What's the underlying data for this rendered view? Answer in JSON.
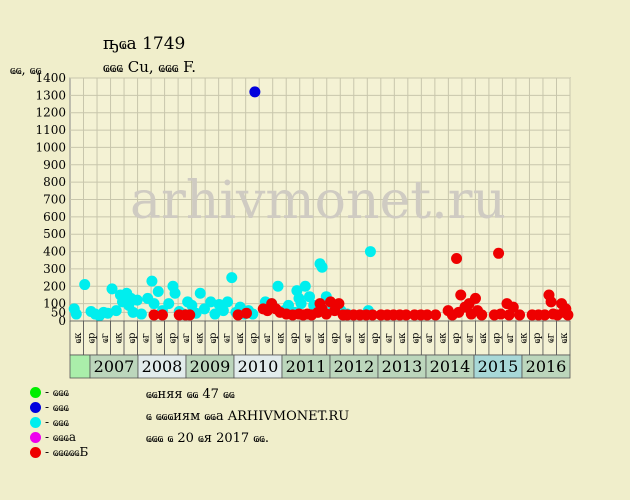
{
  "header": {
    "title": "ҧҩа 1749",
    "subtitle": "ҩҩҩ Cu, ҩҩҩ F.",
    "y_unit": "ҩҩ, ҩҩ"
  },
  "watermark": "arhivmonet.ru",
  "colors": {
    "background": "#f0eecb",
    "plot_bg": "#f4f2d4",
    "grid": "#c8c6ac",
    "green": "#00ee00",
    "blue": "#0000dd",
    "cyan": "#00eeee",
    "magenta": "#ee00ee",
    "red": "#ee0000"
  },
  "legend": [
    {
      "label": "- ҩҩҩ",
      "color": "#00ee00"
    },
    {
      "label": "- ҩҩҩ",
      "color": "#0000dd"
    },
    {
      "label": "- ҩҩҩ",
      "color": "#00eeee"
    },
    {
      "label": "- ҩҩҩа",
      "color": "#ee00ee"
    },
    {
      "label": "- ҩҩҩҩҩБ",
      "color": "#ee0000"
    }
  ],
  "info": {
    "line1": "ҩҩняя ҩҩ 47 ҩҩ",
    "line2": "ҩ ҩҩҩиям ҩҩа ARHIVMONET.RU",
    "line3": "ҩҩҩ ҩ 20 ҩя 2017 ҩҩ."
  },
  "chart_data": {
    "type": "scatter",
    "ylim": [
      0,
      1400
    ],
    "yticks": [
      0,
      50,
      100,
      200,
      300,
      400,
      500,
      600,
      700,
      800,
      900,
      1000,
      1100,
      1200,
      1300,
      1400
    ],
    "x_periods": [
      "ҩк",
      "ҩр",
      "ҩг",
      "ҩк",
      "ҩр",
      "ҩг",
      "ҩк",
      "ҩр",
      "ҩг",
      "ҩк",
      "ҩр",
      "ҩг",
      "ҩк",
      "ҩр",
      "ҩг",
      "ҩк",
      "ҩр",
      "ҩг",
      "ҩк",
      "ҩр",
      "ҩг",
      "ҩк",
      "ҩр",
      "ҩг",
      "ҩк",
      "ҩр",
      "ҩг",
      "ҩк",
      "ҩр",
      "ҩг",
      "ҩк",
      "ҩр",
      "ҩг",
      "ҩк",
      "ҩр",
      "ҩг",
      "ҩк"
    ],
    "years": [
      "2007",
      "2008",
      "2009",
      "2010",
      "2011",
      "2012",
      "2013",
      "2014",
      "2015",
      "2016"
    ],
    "series": [
      {
        "color": "#0000dd",
        "points": [
          [
            2010.5,
            1320
          ]
        ]
      },
      {
        "color": "#00eeee",
        "points": [
          [
            2006.2,
            70
          ],
          [
            2006.25,
            40
          ],
          [
            2006.45,
            210
          ],
          [
            2006.6,
            55
          ],
          [
            2006.7,
            40
          ],
          [
            2006.8,
            30
          ],
          [
            2006.9,
            50
          ],
          [
            2007.0,
            45
          ],
          [
            2007.1,
            185
          ],
          [
            2007.2,
            60
          ],
          [
            2007.3,
            150
          ],
          [
            2007.35,
            110
          ],
          [
            2007.45,
            160
          ],
          [
            2007.5,
            90
          ],
          [
            2007.55,
            130
          ],
          [
            2007.6,
            50
          ],
          [
            2007.7,
            120
          ],
          [
            2007.8,
            40
          ],
          [
            2007.95,
            130
          ],
          [
            2008.05,
            230
          ],
          [
            2008.1,
            100
          ],
          [
            2008.2,
            170
          ],
          [
            2008.3,
            60
          ],
          [
            2008.45,
            100
          ],
          [
            2008.55,
            200
          ],
          [
            2008.6,
            160
          ],
          [
            2008.7,
            55
          ],
          [
            2008.8,
            40
          ],
          [
            2008.9,
            110
          ],
          [
            2009.0,
            90
          ],
          [
            2009.1,
            45
          ],
          [
            2009.2,
            160
          ],
          [
            2009.3,
            70
          ],
          [
            2009.45,
            110
          ],
          [
            2009.55,
            40
          ],
          [
            2009.65,
            95
          ],
          [
            2009.75,
            60
          ],
          [
            2009.85,
            110
          ],
          [
            2009.95,
            250
          ],
          [
            2010.05,
            50
          ],
          [
            2010.15,
            80
          ],
          [
            2010.25,
            40
          ],
          [
            2010.35,
            60
          ],
          [
            2010.45,
            40
          ],
          [
            2010.75,
            110
          ],
          [
            2010.9,
            100
          ],
          [
            2011.05,
            200
          ],
          [
            2011.2,
            60
          ],
          [
            2011.3,
            90
          ],
          [
            2011.45,
            50
          ],
          [
            2011.5,
            175
          ],
          [
            2011.55,
            130
          ],
          [
            2011.6,
            100
          ],
          [
            2011.7,
            200
          ],
          [
            2011.8,
            140
          ],
          [
            2011.9,
            90
          ],
          [
            2012.05,
            330
          ],
          [
            2012.1,
            310
          ],
          [
            2012.2,
            140
          ],
          [
            2012.35,
            90
          ],
          [
            2012.55,
            60
          ],
          [
            2012.7,
            40
          ],
          [
            2013.2,
            60
          ],
          [
            2013.25,
            400
          ]
        ]
      },
      {
        "color": "#ee0000",
        "points": [
          [
            2008.1,
            35
          ],
          [
            2008.3,
            35
          ],
          [
            2008.7,
            35
          ],
          [
            2008.85,
            35
          ],
          [
            2008.95,
            35
          ],
          [
            2010.1,
            35
          ],
          [
            2010.3,
            45
          ],
          [
            2010.7,
            70
          ],
          [
            2010.8,
            60
          ],
          [
            2010.9,
            100
          ],
          [
            2011.0,
            70
          ],
          [
            2011.1,
            50
          ],
          [
            2011.25,
            40
          ],
          [
            2011.4,
            35
          ],
          [
            2011.55,
            40
          ],
          [
            2011.65,
            35
          ],
          [
            2011.75,
            40
          ],
          [
            2011.85,
            35
          ],
          [
            2012.0,
            50
          ],
          [
            2012.05,
            100
          ],
          [
            2012.1,
            70
          ],
          [
            2012.2,
            40
          ],
          [
            2012.3,
            110
          ],
          [
            2012.4,
            60
          ],
          [
            2012.5,
            100
          ],
          [
            2012.6,
            35
          ],
          [
            2012.7,
            35
          ],
          [
            2012.85,
            35
          ],
          [
            2013.0,
            35
          ],
          [
            2013.15,
            35
          ],
          [
            2013.3,
            35
          ],
          [
            2013.5,
            35
          ],
          [
            2013.65,
            35
          ],
          [
            2013.8,
            35
          ],
          [
            2013.95,
            35
          ],
          [
            2014.1,
            35
          ],
          [
            2014.3,
            35
          ],
          [
            2014.45,
            35
          ],
          [
            2014.6,
            35
          ],
          [
            2014.8,
            35
          ],
          [
            2015.1,
            60
          ],
          [
            2015.2,
            35
          ],
          [
            2015.3,
            360
          ],
          [
            2015.35,
            50
          ],
          [
            2015.4,
            150
          ],
          [
            2015.5,
            80
          ],
          [
            2015.6,
            100
          ],
          [
            2015.65,
            40
          ],
          [
            2015.75,
            130
          ],
          [
            2015.8,
            60
          ],
          [
            2015.9,
            35
          ],
          [
            2016.2,
            35
          ],
          [
            2016.3,
            390
          ],
          [
            2016.35,
            40
          ],
          [
            2016.5,
            100
          ],
          [
            2016.55,
            35
          ],
          [
            2016.65,
            80
          ],
          [
            2016.8,
            35
          ],
          [
            2017.1,
            35
          ],
          [
            2017.25,
            35
          ],
          [
            2017.4,
            35
          ],
          [
            2017.5,
            150
          ],
          [
            2017.55,
            110
          ],
          [
            2017.6,
            40
          ],
          [
            2017.7,
            35
          ],
          [
            2017.8,
            100
          ],
          [
            2017.85,
            50
          ],
          [
            2017.9,
            70
          ],
          [
            2017.95,
            35
          ]
        ]
      }
    ]
  }
}
